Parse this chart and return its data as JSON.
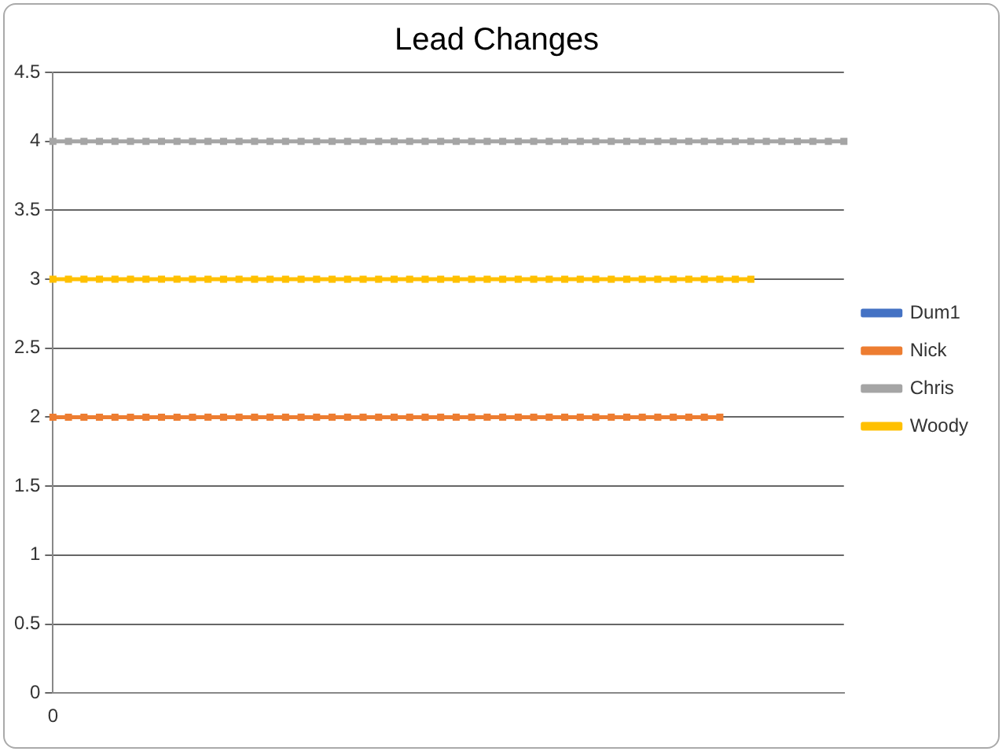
{
  "chart_data": {
    "type": "line",
    "title": "Lead Changes",
    "categories": [
      "0",
      null,
      null,
      null,
      null,
      null,
      null,
      null,
      null,
      null,
      null,
      null,
      null,
      null,
      null,
      null,
      null,
      null,
      null,
      null,
      null,
      null,
      null,
      null,
      null,
      null,
      null,
      null,
      null,
      null,
      null,
      null,
      null,
      null,
      null,
      null,
      null,
      null,
      null,
      null,
      null,
      null,
      null,
      null,
      null,
      null,
      null,
      null,
      null,
      null,
      null,
      null
    ],
    "series": [
      {
        "name": "Dum1",
        "color": "#4472c4",
        "values": [
          null,
          null,
          null,
          null,
          null,
          null,
          null,
          null,
          null,
          null,
          null,
          null,
          null,
          null,
          null,
          null,
          null,
          null,
          null,
          null,
          null,
          null,
          null,
          null,
          null,
          null,
          null,
          null,
          null,
          null,
          null,
          null,
          null,
          null,
          null,
          null,
          null,
          null,
          null,
          null,
          null,
          null,
          null,
          null,
          null,
          null,
          null,
          null,
          null,
          null,
          null,
          null
        ]
      },
      {
        "name": "Nick",
        "color": "#ed7d31",
        "values": [
          2,
          2,
          2,
          2,
          2,
          2,
          2,
          2,
          2,
          2,
          2,
          2,
          2,
          2,
          2,
          2,
          2,
          2,
          2,
          2,
          2,
          2,
          2,
          2,
          2,
          2,
          2,
          2,
          2,
          2,
          2,
          2,
          2,
          2,
          2,
          2,
          2,
          2,
          2,
          2,
          2,
          2,
          2,
          2,
          null,
          null,
          null,
          null,
          null,
          null,
          null,
          null
        ]
      },
      {
        "name": "Chris",
        "color": "#a5a5a5",
        "values": [
          4,
          4,
          4,
          4,
          4,
          4,
          4,
          4,
          4,
          4,
          4,
          4,
          4,
          4,
          4,
          4,
          4,
          4,
          4,
          4,
          4,
          4,
          4,
          4,
          4,
          4,
          4,
          4,
          4,
          4,
          4,
          4,
          4,
          4,
          4,
          4,
          4,
          4,
          4,
          4,
          4,
          4,
          4,
          4,
          4,
          4,
          4,
          4,
          4,
          4,
          4,
          4
        ]
      },
      {
        "name": "Woody",
        "color": "#ffc000",
        "values": [
          3,
          3,
          3,
          3,
          3,
          3,
          3,
          3,
          3,
          3,
          3,
          3,
          3,
          3,
          3,
          3,
          3,
          3,
          3,
          3,
          3,
          3,
          3,
          3,
          3,
          3,
          3,
          3,
          3,
          3,
          3,
          3,
          3,
          3,
          3,
          3,
          3,
          3,
          3,
          3,
          3,
          3,
          3,
          3,
          3,
          3,
          null,
          null,
          null,
          null,
          null,
          null
        ]
      }
    ],
    "ylim": [
      0,
      4.5
    ],
    "yticks": [
      0,
      0.5,
      1,
      1.5,
      2,
      2.5,
      3,
      3.5,
      4,
      4.5
    ],
    "grid": "y",
    "legend": "right",
    "marker": "square",
    "line_style": "solid"
  }
}
